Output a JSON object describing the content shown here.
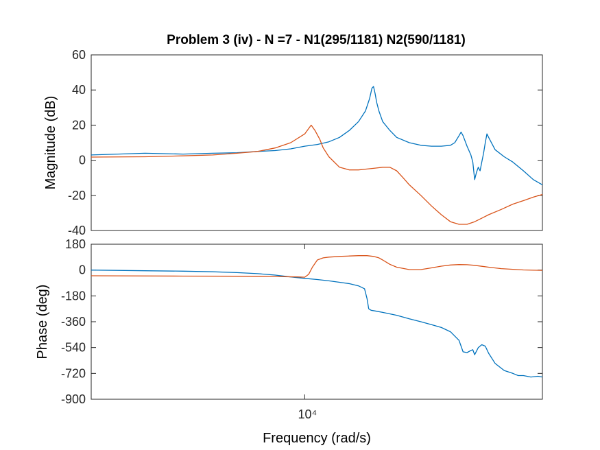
{
  "window": {
    "title": "Problem 3 (iv) - N =7 - N1(295/1181) N2(590/1181)"
  },
  "colors": {
    "series1": "#0072bd",
    "series2": "#d95319",
    "axes": "#262626"
  },
  "chart_data": [
    {
      "type": "line",
      "title": "Problem 3 (iv) - N =7 - N1(295/1181) N2(590/1181)",
      "ylabel": "Magnitude (dB)",
      "xscale": "log",
      "xlim": [
        2000,
        60000
      ],
      "ylim": [
        -40,
        60
      ],
      "yticks": [
        60,
        40,
        20,
        0,
        -20,
        -40
      ],
      "ytick_labels": [
        "60",
        "40",
        "20",
        "0",
        "-20",
        "-40"
      ],
      "grid": false,
      "series": [
        {
          "x": [
            2000,
            3000,
            4000,
            5000,
            6000,
            7000,
            8000,
            9000,
            10000,
            11000,
            12000,
            13000,
            14000,
            15000,
            15800,
            16300,
            16600,
            16800,
            17000,
            17200,
            17500,
            18000,
            19000,
            20000,
            22000,
            24000,
            26000,
            28000,
            30000,
            31000,
            32000,
            32500,
            33000,
            34000,
            35000,
            35500,
            36000,
            36500,
            37000,
            37500,
            38000,
            38500,
            39000,
            39500,
            40000,
            42000,
            45000,
            48000,
            52000,
            56000,
            60000
          ],
          "values": [
            3,
            4,
            3.5,
            4,
            4.3,
            5,
            5.5,
            6.5,
            8,
            9,
            10.5,
            13,
            17,
            22,
            28,
            35,
            41,
            42,
            38,
            33,
            28,
            22,
            17,
            13,
            10,
            8.5,
            8,
            8,
            8.5,
            10,
            14,
            16,
            14,
            8,
            3,
            -1,
            -11,
            -7,
            -4,
            -6,
            -1,
            4,
            10,
            15,
            13,
            6,
            2,
            -1,
            -6,
            -11,
            -14
          ]
        },
        {
          "x": [
            2000,
            3000,
            4000,
            5000,
            6000,
            7000,
            8000,
            9000,
            10000,
            10500,
            10800,
            11200,
            11500,
            12000,
            13000,
            14000,
            15000,
            16000,
            17000,
            18000,
            19000,
            20000,
            21000,
            22000,
            24000,
            26000,
            28000,
            30000,
            32000,
            34000,
            36000,
            38000,
            40000,
            44000,
            48000,
            52000,
            56000,
            60000
          ],
          "values": [
            1.8,
            2,
            2.5,
            3,
            4,
            5,
            7,
            10,
            15,
            20,
            17,
            12,
            7,
            2,
            -4,
            -5.5,
            -5.5,
            -5,
            -4.5,
            -4,
            -4,
            -6,
            -10,
            -14,
            -20,
            -26,
            -31,
            -35,
            -36.5,
            -36.5,
            -35,
            -33,
            -31,
            -28,
            -25,
            -23,
            -21,
            -19.5
          ]
        }
      ]
    },
    {
      "type": "line",
      "xlabel": "Frequency  (rad/s)",
      "ylabel": "Phase (deg)",
      "xscale": "log",
      "xlim": [
        2000,
        60000
      ],
      "ylim": [
        -900,
        180
      ],
      "yticks": [
        180,
        0,
        -180,
        -360,
        -540,
        -720,
        -900
      ],
      "ytick_labels": [
        "180",
        "0",
        "-180",
        "-360",
        "-540",
        "-720",
        "-900"
      ],
      "xtick_label": "10⁴",
      "grid": false,
      "series": [
        {
          "x": [
            2000,
            3000,
            4000,
            5000,
            6000,
            7000,
            8000,
            9000,
            10000,
            11000,
            12000,
            13000,
            14000,
            15000,
            15700,
            16000,
            16200,
            16500,
            17000,
            18000,
            20000,
            22000,
            24000,
            26000,
            28000,
            30000,
            31000,
            32000,
            32500,
            33000,
            34000,
            35000,
            35500,
            36000,
            37000,
            38000,
            39000,
            40000,
            42000,
            45000,
            48000,
            50000,
            52000,
            55000,
            58000,
            60000
          ],
          "values": [
            0,
            -5,
            -8,
            -12,
            -18,
            -25,
            -35,
            -48,
            -58,
            -66,
            -75,
            -85,
            -95,
            -110,
            -130,
            -200,
            -270,
            -280,
            -285,
            -295,
            -315,
            -340,
            -360,
            -380,
            -400,
            -430,
            -460,
            -490,
            -530,
            -570,
            -575,
            -560,
            -555,
            -590,
            -540,
            -520,
            -530,
            -580,
            -650,
            -700,
            -720,
            -735,
            -735,
            -745,
            -740,
            -745
          ]
        },
        {
          "x": [
            2000,
            4000,
            6000,
            8000,
            9500,
            10000,
            10300,
            10600,
            11000,
            11500,
            12000,
            13000,
            14000,
            15000,
            16000,
            16800,
            17500,
            18000,
            19000,
            20000,
            22000,
            24000,
            26000,
            28000,
            30000,
            32000,
            34000,
            36000,
            38000,
            40000,
            44000,
            48000,
            52000,
            56000,
            60000
          ],
          "values": [
            -40,
            -42,
            -43,
            -45,
            -48,
            -50,
            -30,
            20,
            70,
            85,
            90,
            95,
            98,
            100,
            100,
            95,
            85,
            70,
            40,
            20,
            3,
            3,
            15,
            27,
            35,
            38,
            37,
            33,
            26,
            20,
            10,
            5,
            1,
            -1,
            -2
          ]
        }
      ]
    }
  ]
}
